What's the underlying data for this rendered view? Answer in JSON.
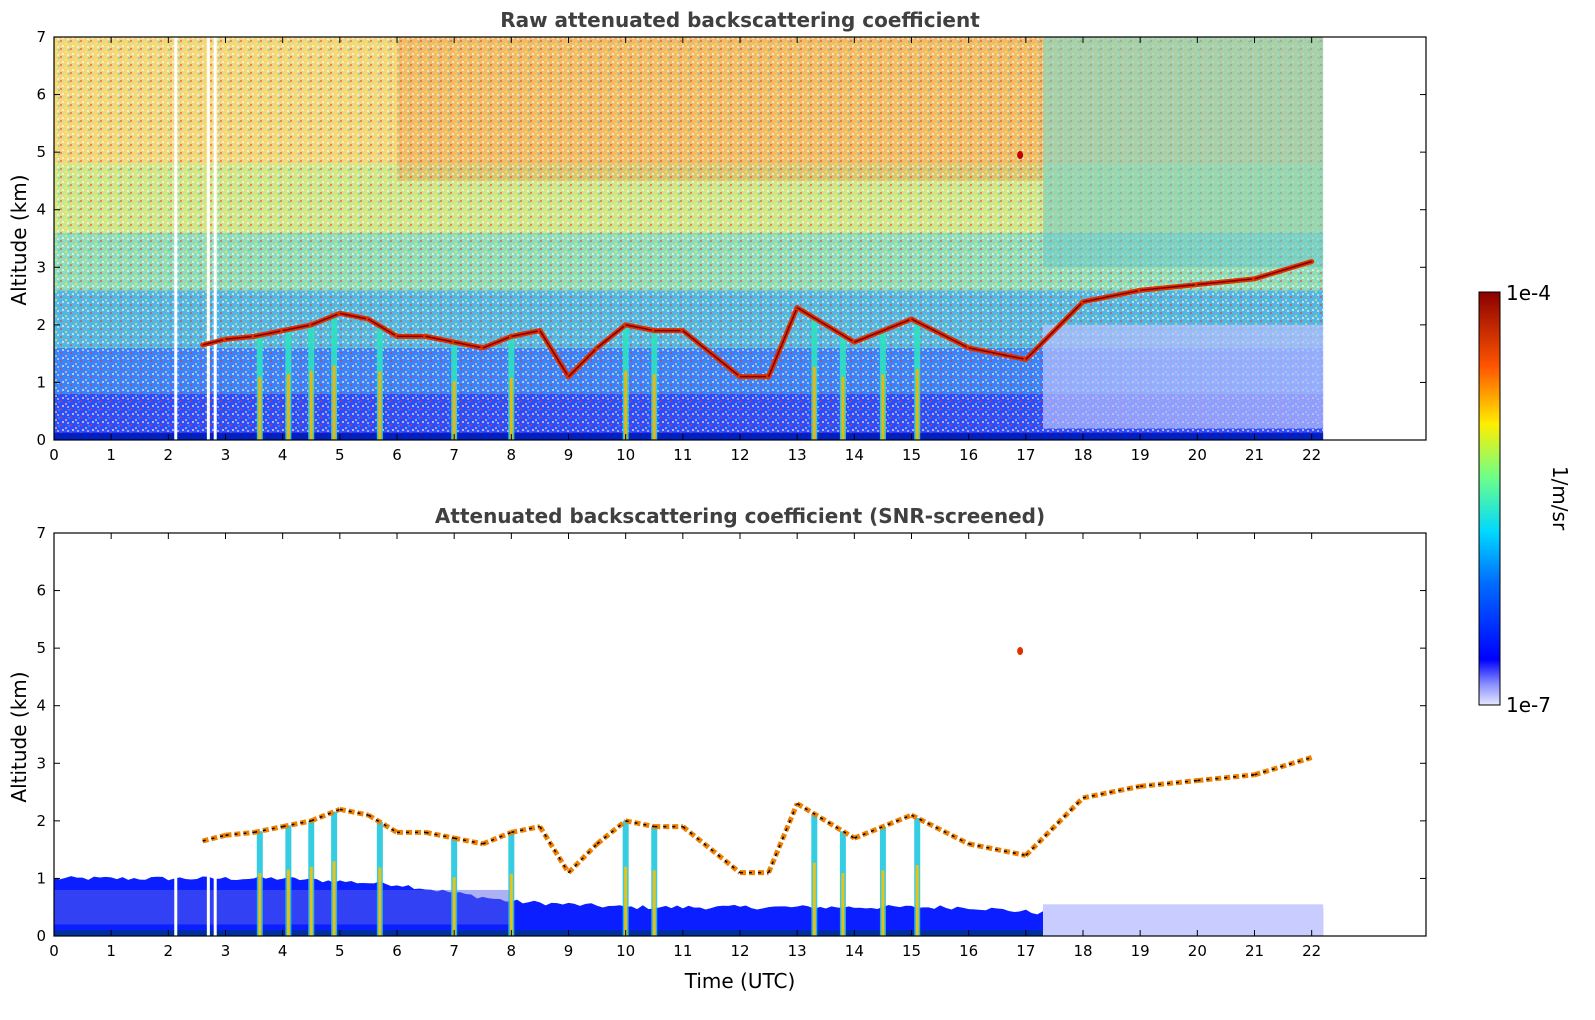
{
  "chart_data": [
    {
      "type": "heatmap",
      "title": "Raw attenuated backscattering coefficient",
      "xlabel": "",
      "ylabel": "Altitude (km)",
      "xlim": [
        0,
        24
      ],
      "ylim": [
        0,
        7
      ],
      "x_ticks": [
        "0",
        "1",
        "2",
        "3",
        "4",
        "5",
        "6",
        "7",
        "8",
        "9",
        "10",
        "11",
        "12",
        "13",
        "14",
        "15",
        "16",
        "17",
        "18",
        "19",
        "20",
        "21",
        "22"
      ],
      "y_ticks": [
        "0",
        "1",
        "2",
        "3",
        "4",
        "5",
        "6",
        "7"
      ],
      "data_time_range": [
        0,
        22.2
      ],
      "data_gaps_hours": [
        2.13,
        2.7,
        2.82
      ],
      "cloud_layer": [
        {
          "t": 2.6,
          "h": 1.65
        },
        {
          "t": 3.0,
          "h": 1.75
        },
        {
          "t": 3.5,
          "h": 1.8
        },
        {
          "t": 4.0,
          "h": 1.9
        },
        {
          "t": 4.5,
          "h": 2.0
        },
        {
          "t": 5.0,
          "h": 2.2
        },
        {
          "t": 5.5,
          "h": 2.1
        },
        {
          "t": 6.0,
          "h": 1.8
        },
        {
          "t": 6.5,
          "h": 1.8
        },
        {
          "t": 7.0,
          "h": 1.7
        },
        {
          "t": 7.5,
          "h": 1.6
        },
        {
          "t": 8.0,
          "h": 1.8
        },
        {
          "t": 8.5,
          "h": 1.9
        },
        {
          "t": 9.0,
          "h": 1.1
        },
        {
          "t": 9.5,
          "h": 1.6
        },
        {
          "t": 10.0,
          "h": 2.0
        },
        {
          "t": 10.5,
          "h": 1.9
        },
        {
          "t": 11.0,
          "h": 1.9
        },
        {
          "t": 12.0,
          "h": 1.1
        },
        {
          "t": 12.5,
          "h": 1.1
        },
        {
          "t": 13.0,
          "h": 2.3
        },
        {
          "t": 14.0,
          "h": 1.7
        },
        {
          "t": 15.0,
          "h": 2.1
        },
        {
          "t": 16.0,
          "h": 1.6
        },
        {
          "t": 17.0,
          "h": 1.4
        },
        {
          "t": 18.0,
          "h": 2.4
        },
        {
          "t": 19.0,
          "h": 2.6
        },
        {
          "t": 20.0,
          "h": 2.7
        },
        {
          "t": 21.0,
          "h": 2.8
        },
        {
          "t": 22.0,
          "h": 3.1
        }
      ],
      "vertical_plumes_hours": [
        3.6,
        4.1,
        4.5,
        4.9,
        5.7,
        7.0,
        8.0,
        10.0,
        10.5,
        13.3,
        13.8,
        14.5,
        15.1
      ]
    },
    {
      "type": "heatmap",
      "title": "Attenuated backscattering coefficient (SNR-screened)",
      "xlabel": "Time (UTC)",
      "ylabel": "Altitude (km)",
      "xlim": [
        0,
        24
      ],
      "ylim": [
        0,
        7
      ],
      "x_ticks": [
        "0",
        "1",
        "2",
        "3",
        "4",
        "5",
        "6",
        "7",
        "8",
        "9",
        "10",
        "11",
        "12",
        "13",
        "14",
        "15",
        "16",
        "17",
        "18",
        "19",
        "20",
        "21",
        "22"
      ],
      "y_ticks": [
        "0",
        "1",
        "2",
        "3",
        "4",
        "5",
        "6",
        "7"
      ],
      "boundary_layer_top": [
        {
          "t": 0,
          "h": 1.0
        },
        {
          "t": 2,
          "h": 1.0
        },
        {
          "t": 4,
          "h": 1.0
        },
        {
          "t": 6,
          "h": 0.9
        },
        {
          "t": 8,
          "h": 0.6
        },
        {
          "t": 10,
          "h": 0.5
        },
        {
          "t": 12,
          "h": 0.5
        },
        {
          "t": 14,
          "h": 0.5
        },
        {
          "t": 16,
          "h": 0.5
        },
        {
          "t": 17.3,
          "h": 0.4
        },
        {
          "t": 20,
          "h": 0.5
        },
        {
          "t": 22.2,
          "h": 0.5
        }
      ]
    }
  ],
  "colorbar": {
    "label": "1/m/sr",
    "max_label": "1e-4",
    "min_label": "1e-7",
    "scale": "log",
    "range": [
      1e-07,
      0.0001
    ],
    "colormap": "jet"
  }
}
